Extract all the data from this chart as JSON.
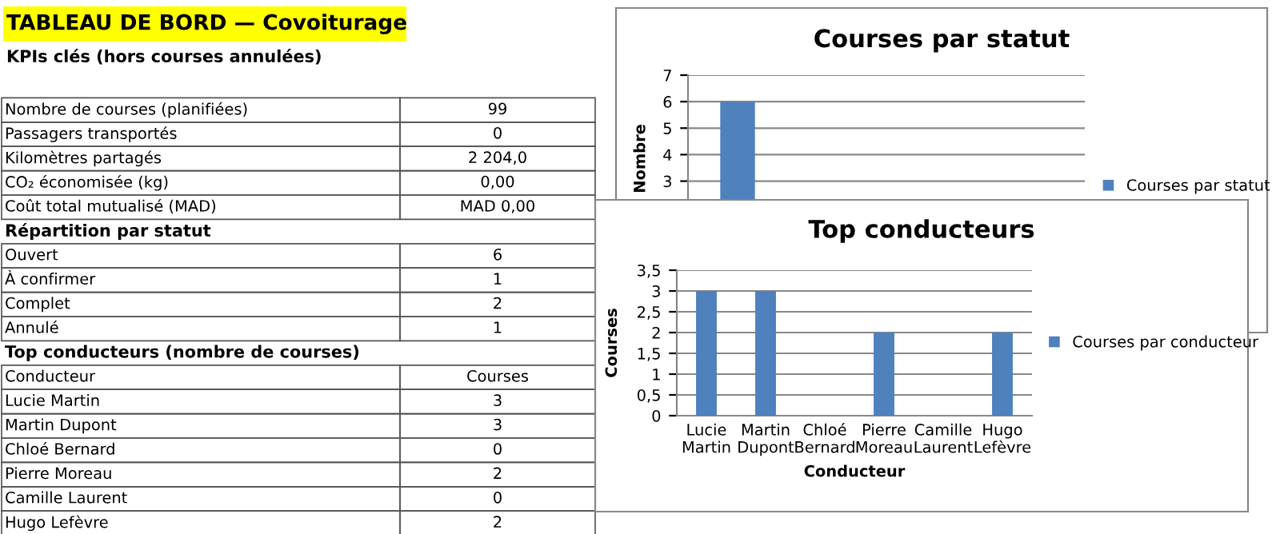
{
  "chart_data": [
    {
      "type": "other",
      "title": "TABLEAU DE BORD — Covoiturage",
      "subtitle": "KPIs clés (hors courses annulées)",
      "y_categories": [
        null,
        "Nombre de courses (planifiées)",
        "Passagers transportés",
        "Kilomètres partagés",
        "CO₂ économisée (kg)",
        "Coût total mutualisé (MAD)",
        "Répartition par statut",
        "Ouvert",
        "À confirmer",
        "Complet",
        "Annulé",
        "Top conducteurs (nombre de courses)",
        "Conducteur",
        "Lucie Martin",
        "Martin Dupont",
        "Chloé Bernard",
        "Pierre Moreau",
        "Camille Laurent",
        "Hugo Lefèvre"
      ],
      "cell_labels": [
        null,
        [
          "99"
        ],
        [
          "0"
        ],
        [
          "2 204,0"
        ],
        [
          "0,00"
        ],
        [
          "MAD 0,00"
        ],
        null,
        [
          "6"
        ],
        [
          "1"
        ],
        [
          "2"
        ],
        [
          "1"
        ],
        null,
        [
          "Courses"
        ],
        [
          "3"
        ],
        [
          "3"
        ],
        [
          "0"
        ],
        [
          "2"
        ],
        [
          "0"
        ],
        [
          "2"
        ]
      ]
    },
    {
      "type": "bar",
      "title": "Courses par statut",
      "ylabel": "Nombre",
      "categories": [
        null,
        null,
        null,
        null
      ],
      "series": [
        {
          "name": "Courses par statut",
          "color": "#4f81bd",
          "values": [
            6,
            null,
            null,
            null
          ]
        }
      ],
      "ylim": [
        0,
        7
      ],
      "yticks": [
        3,
        4,
        5,
        6,
        7
      ],
      "grid": "y",
      "legend": "right"
    },
    {
      "type": "bar",
      "title": "Top conducteurs",
      "xlabel": "Conducteur",
      "ylabel": "Courses",
      "categories": [
        "Lucie Martin",
        "Martin Dupont",
        "Chloé Bernard",
        "Pierre Moreau",
        "Camille Laurent",
        "Hugo Lefèvre"
      ],
      "series": [
        {
          "name": "Courses par conducteur",
          "color": "#4f81bd",
          "values": [
            3,
            3,
            0,
            2,
            0,
            2
          ]
        }
      ],
      "ylim": [
        0,
        3.5
      ],
      "yticks": [
        0,
        {
          "value": 0.5,
          "label": "0,5"
        },
        1,
        {
          "value": 1.5,
          "label": "1,5"
        },
        2,
        {
          "value": 2.5,
          "label": "2,5"
        },
        3,
        {
          "value": 3.5,
          "label": "3,5"
        }
      ],
      "grid": "y",
      "legend": "right"
    }
  ]
}
